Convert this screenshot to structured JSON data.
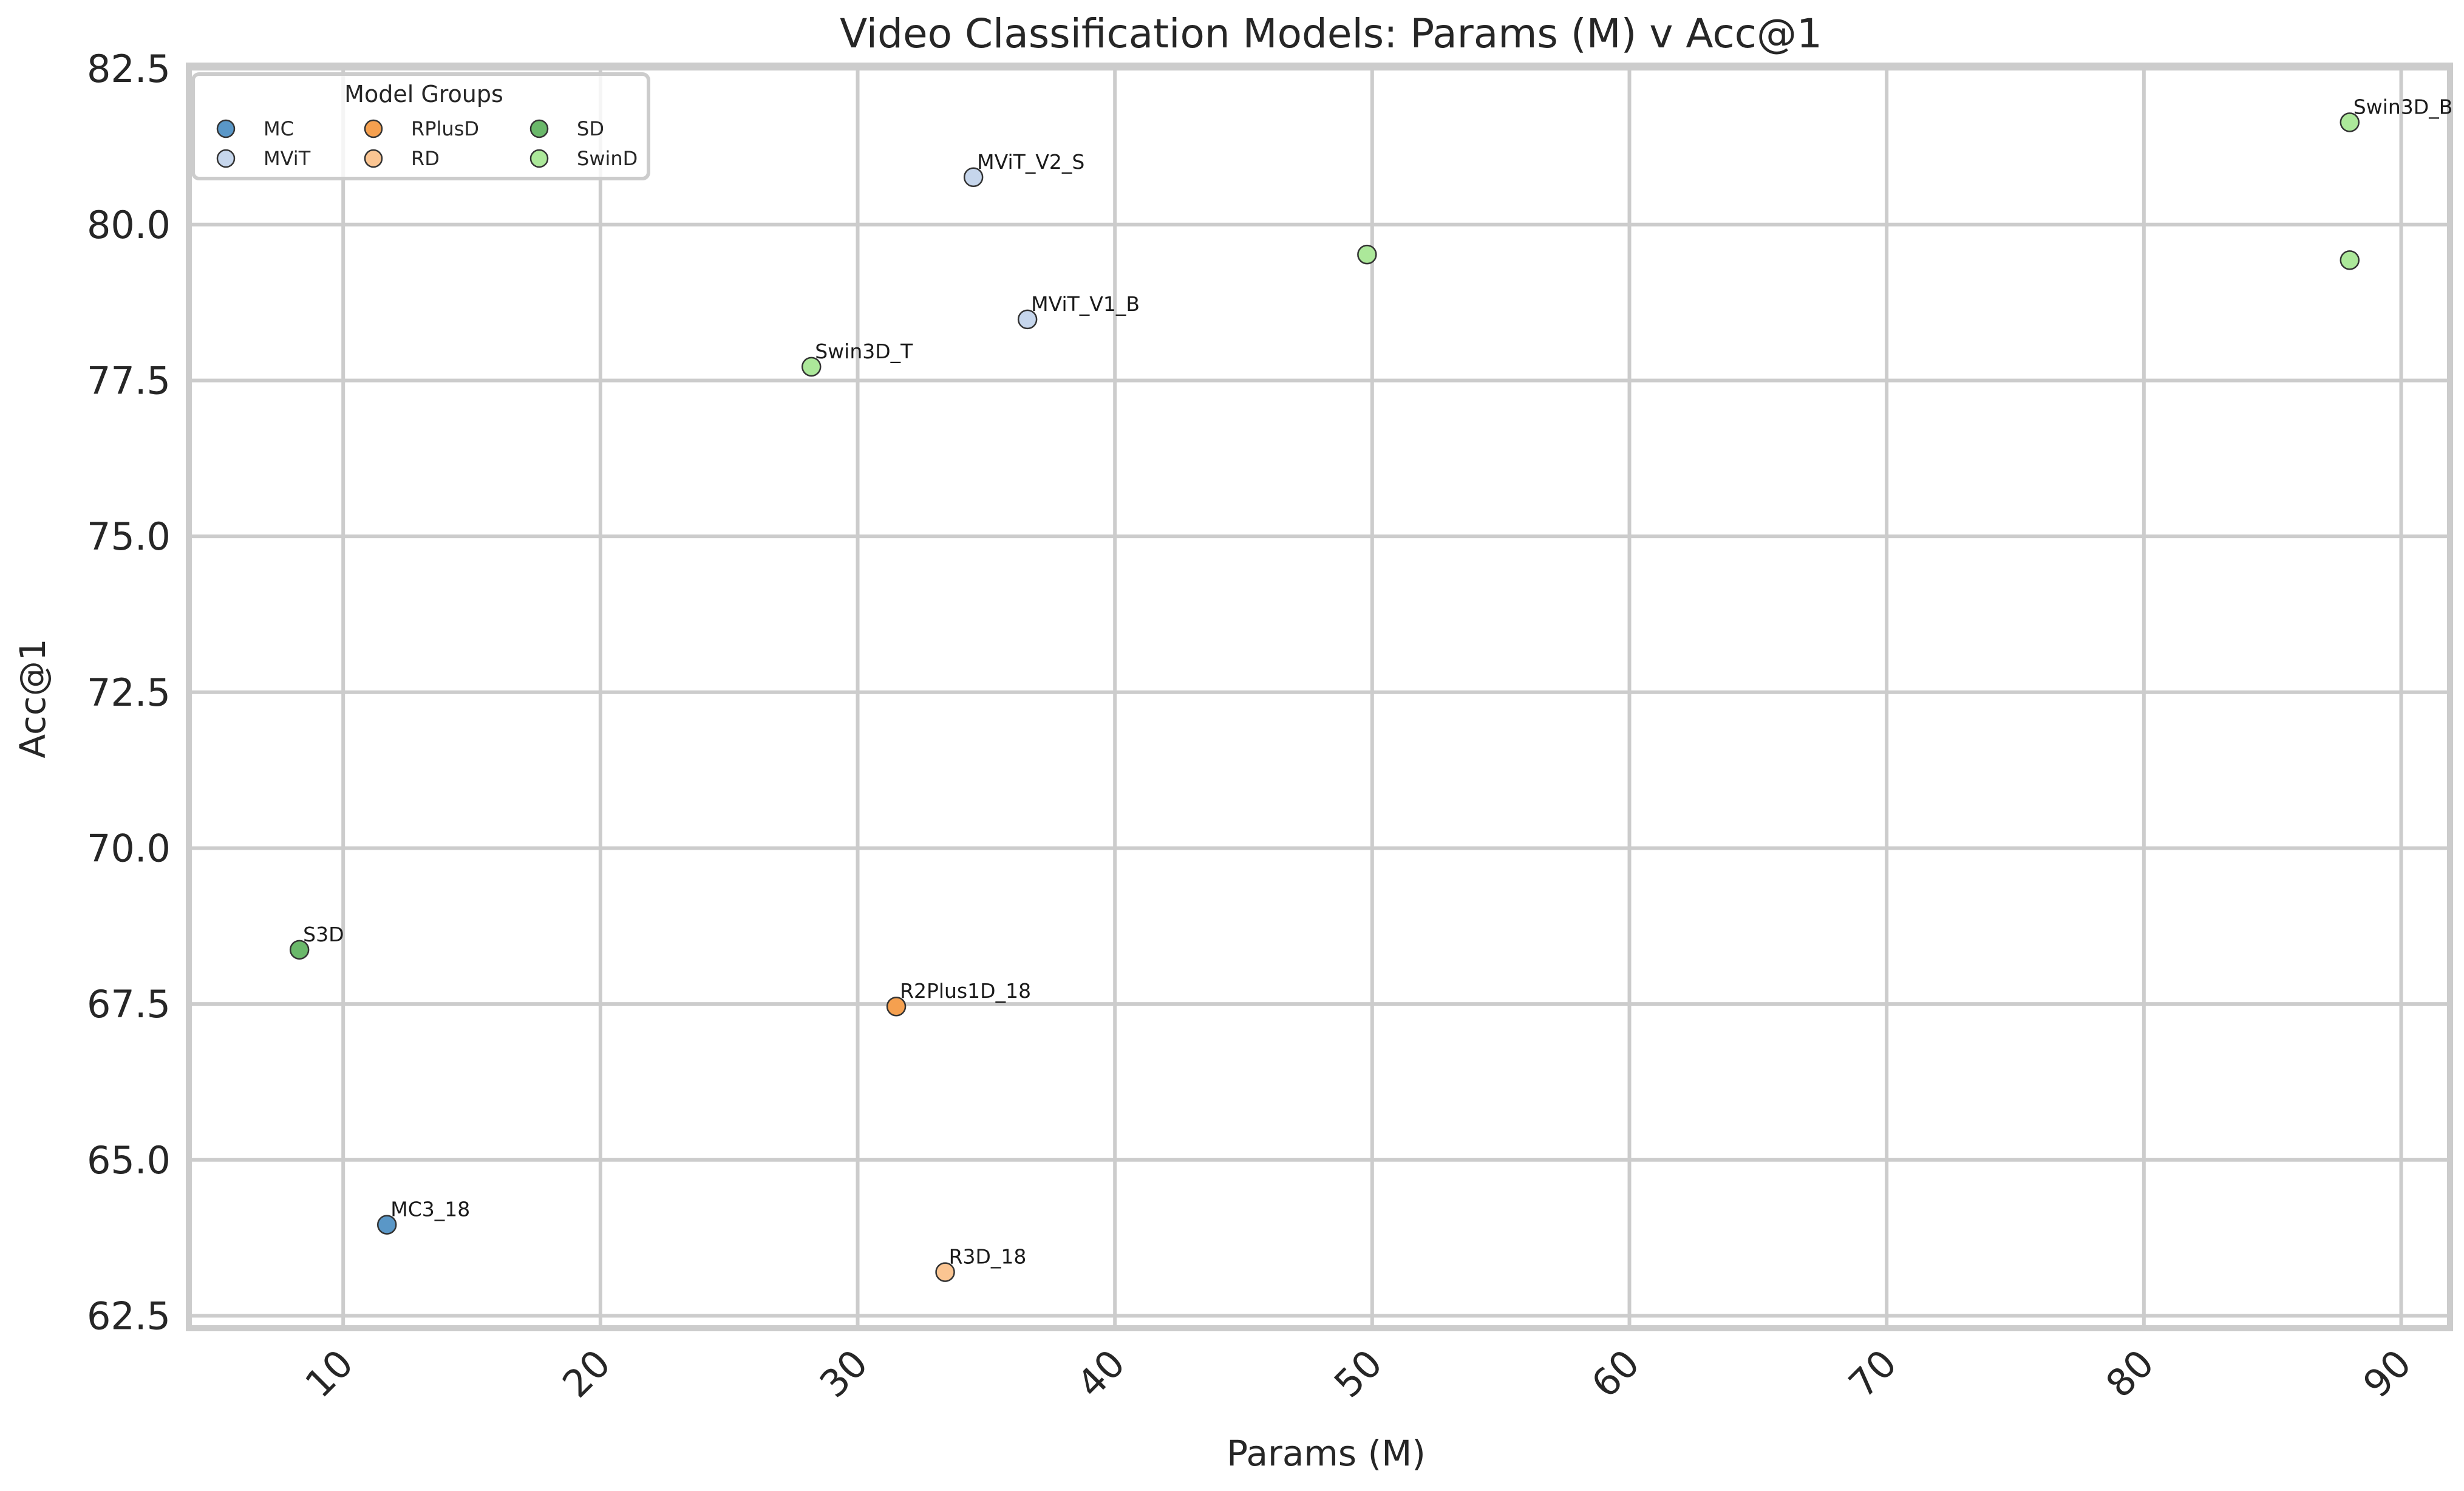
{
  "chart_data": {
    "type": "scatter",
    "title": "Video Classification Models: Params (M) v Acc@1",
    "xlabel": "Params (M)",
    "ylabel": "Acc@1",
    "xlim": [
      4.0,
      91.9
    ],
    "ylim": [
      62.3,
      82.55
    ],
    "x_ticks": [
      10,
      20,
      30,
      40,
      50,
      60,
      70,
      80,
      90
    ],
    "y_ticks": [
      62.5,
      65.0,
      67.5,
      70.0,
      72.5,
      75.0,
      77.5,
      80.0,
      82.5
    ],
    "x_tick_rotation_deg": 45,
    "grid": true,
    "legend": {
      "title": "Model Groups",
      "placement": "top-left",
      "columns": 3,
      "entries": [
        "MC",
        "MViT",
        "RPlusD",
        "RD",
        "SD",
        "SwinD"
      ]
    },
    "series": [
      {
        "name": "MC",
        "color": "#5a97c7",
        "points": [
          {
            "x": 11.7,
            "y": 63.96,
            "label": "MC3_18"
          }
        ]
      },
      {
        "name": "MViT",
        "color": "#c6d6ec",
        "points": [
          {
            "x": 34.5,
            "y": 80.76,
            "label": "MViT_V2_S"
          },
          {
            "x": 36.6,
            "y": 78.48,
            "label": "MViT_V1_B"
          }
        ]
      },
      {
        "name": "RPlusD",
        "color": "#f5a04f",
        "points": [
          {
            "x": 31.5,
            "y": 67.46,
            "label": "R2Plus1D_18"
          }
        ]
      },
      {
        "name": "RD",
        "color": "#fbc592",
        "points": [
          {
            "x": 33.4,
            "y": 63.2,
            "label": "R3D_18"
          }
        ]
      },
      {
        "name": "SD",
        "color": "#6ab86a",
        "points": [
          {
            "x": 8.3,
            "y": 68.37,
            "label": "S3D"
          }
        ]
      },
      {
        "name": "SwinD",
        "color": "#ace89a",
        "points": [
          {
            "x": 28.2,
            "y": 77.72,
            "label": "Swin3D_T"
          },
          {
            "x": 49.8,
            "y": 79.52,
            "label": ""
          },
          {
            "x": 88.0,
            "y": 79.43,
            "label": ""
          },
          {
            "x": 88.0,
            "y": 81.64,
            "label": "Swin3D_B"
          }
        ]
      }
    ]
  }
}
